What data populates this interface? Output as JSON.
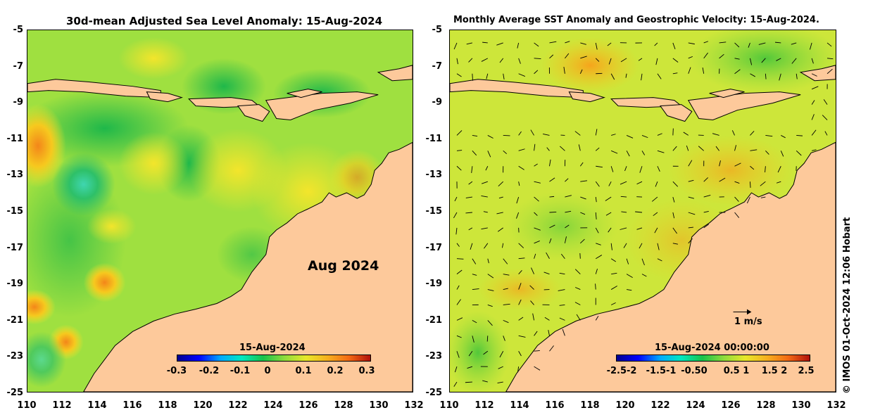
{
  "left_panel": {
    "title": "30d-mean Adjusted Sea Level Anomaly: 15-Aug-2024",
    "month_label": "Aug 2024",
    "colorbar": {
      "date": "15-Aug-2024",
      "ticks": [
        "-0.3",
        "-0.2",
        "-0.1",
        "0",
        "0.1",
        "0.2",
        "0.3"
      ],
      "range": [
        -0.3,
        0.3
      ]
    }
  },
  "right_panel": {
    "title": "Monthly Average SST Anomaly  and Geostrophic Velocity: 15-Aug-2024.",
    "reference_vector_label": "1 m/s",
    "colorbar": {
      "date": "15-Aug-2024 00:00:00",
      "ticks": [
        "-2.5-2",
        "-1.5-1",
        "-0.50",
        "0.5 1",
        "1.5 2",
        "2.5"
      ],
      "range": [
        -2.5,
        2.5
      ]
    }
  },
  "axes": {
    "latitude_ticks": [
      "-5",
      "-7",
      "-9",
      "-11",
      "-13",
      "-15",
      "-17",
      "-19",
      "-21",
      "-23",
      "-25"
    ],
    "longitude_ticks": [
      "110",
      "112",
      "114",
      "116",
      "118",
      "120",
      "122",
      "124",
      "126",
      "128",
      "130",
      "132"
    ],
    "lat_range": [
      -25,
      -5
    ],
    "lon_range": [
      110,
      132
    ]
  },
  "credit": "© IMOS 01-Oct-2024 12:06 Hobart",
  "colors": {
    "land": "#fdc99b",
    "ocean_base_left": "#b8e83a",
    "ocean_base_right": "#cbe83a"
  }
}
